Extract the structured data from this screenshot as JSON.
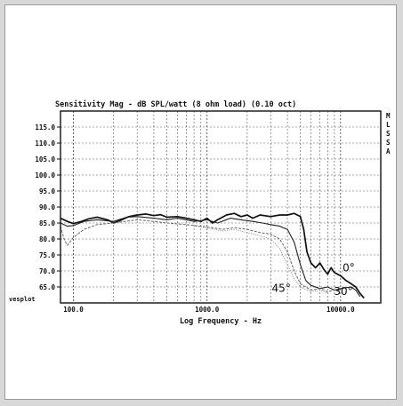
{
  "chart_data": {
    "type": "line",
    "title": "Sensitivity Mag - dB SPL/watt (8 ohm load) (0.10 oct)",
    "xlabel": "Log Frequency - Hz",
    "ylabel": "",
    "corner_label": "vesplot",
    "side_labels": [
      "M",
      "L",
      "S",
      "S",
      "A"
    ],
    "x_scale": "log",
    "xlim": [
      80,
      20000
    ],
    "ylim": [
      60,
      120
    ],
    "y_ticks": [
      {
        "value": 115,
        "label": "115.0"
      },
      {
        "value": 110,
        "label": "110.0"
      },
      {
        "value": 105,
        "label": "105.0"
      },
      {
        "value": 100,
        "label": "100.0"
      },
      {
        "value": 95,
        "label": "95.0"
      },
      {
        "value": 90,
        "label": "90.0"
      },
      {
        "value": 85,
        "label": "85.0"
      },
      {
        "value": 80,
        "label": "80.0"
      },
      {
        "value": 75,
        "label": "75.0"
      },
      {
        "value": 70,
        "label": "70.0"
      },
      {
        "value": 65,
        "label": "65.0"
      }
    ],
    "x_ticks": [
      {
        "value": 100,
        "label": "100.0"
      },
      {
        "value": 1000,
        "label": "1000.0"
      },
      {
        "value": 10000,
        "label": "10000.0"
      }
    ],
    "grid": true,
    "annotations": [
      {
        "text": "0°",
        "x": 11500,
        "y": 69.8
      },
      {
        "text": "45°",
        "x": 3600,
        "y": 63.5
      },
      {
        "text": "30°",
        "x": 10500,
        "y": 62.5
      }
    ],
    "series": [
      {
        "color": "#111111",
        "style": "solid",
        "width": 1.7,
        "points": [
          [
            80,
            86.5
          ],
          [
            90,
            85.5
          ],
          [
            100,
            84.8
          ],
          [
            115,
            85.5
          ],
          [
            130,
            86.3
          ],
          [
            150,
            86.8
          ],
          [
            180,
            86.0
          ],
          [
            200,
            85.0
          ],
          [
            230,
            86.0
          ],
          [
            260,
            87.0
          ],
          [
            300,
            87.5
          ],
          [
            350,
            87.8
          ],
          [
            400,
            87.3
          ],
          [
            450,
            87.6
          ],
          [
            500,
            86.8
          ],
          [
            600,
            87.0
          ],
          [
            700,
            86.5
          ],
          [
            800,
            86.0
          ],
          [
            900,
            85.5
          ],
          [
            1000,
            86.5
          ],
          [
            1100,
            85.0
          ],
          [
            1200,
            86.0
          ],
          [
            1400,
            87.5
          ],
          [
            1600,
            88.0
          ],
          [
            1800,
            87.0
          ],
          [
            2000,
            87.5
          ],
          [
            2200,
            86.5
          ],
          [
            2500,
            87.5
          ],
          [
            3000,
            87.0
          ],
          [
            3500,
            87.5
          ],
          [
            4000,
            87.5
          ],
          [
            4500,
            88.0
          ],
          [
            5000,
            87.0
          ],
          [
            5300,
            83.0
          ],
          [
            5600,
            76.0
          ],
          [
            6000,
            72.5
          ],
          [
            6500,
            71.0
          ],
          [
            7000,
            72.5
          ],
          [
            7500,
            70.5
          ],
          [
            8000,
            69.0
          ],
          [
            8500,
            71.0
          ],
          [
            9000,
            69.5
          ],
          [
            10000,
            68.5
          ],
          [
            11000,
            67.0
          ],
          [
            12000,
            66.0
          ],
          [
            13000,
            65.0
          ],
          [
            14000,
            63.0
          ],
          [
            15000,
            61.5
          ]
        ]
      },
      {
        "color": "#222222",
        "style": "solid",
        "width": 1.1,
        "points": [
          [
            80,
            85.0
          ],
          [
            90,
            84.0
          ],
          [
            100,
            84.2
          ],
          [
            120,
            85.5
          ],
          [
            150,
            86.0
          ],
          [
            200,
            85.5
          ],
          [
            250,
            86.8
          ],
          [
            300,
            87.0
          ],
          [
            400,
            86.5
          ],
          [
            500,
            86.0
          ],
          [
            600,
            86.5
          ],
          [
            800,
            85.5
          ],
          [
            1000,
            86.0
          ],
          [
            1200,
            85.0
          ],
          [
            1500,
            86.5
          ],
          [
            1800,
            86.0
          ],
          [
            2200,
            85.5
          ],
          [
            2600,
            85.0
          ],
          [
            3000,
            84.5
          ],
          [
            3500,
            84.0
          ],
          [
            4000,
            83.0
          ],
          [
            4500,
            79.0
          ],
          [
            5000,
            72.0
          ],
          [
            5500,
            67.0
          ],
          [
            6000,
            65.5
          ],
          [
            7000,
            64.5
          ],
          [
            8000,
            65.0
          ],
          [
            9000,
            64.0
          ],
          [
            10000,
            64.5
          ],
          [
            12000,
            65.0
          ],
          [
            13000,
            64.0
          ],
          [
            14000,
            62.0
          ]
        ]
      },
      {
        "color": "#666666",
        "style": "dashed",
        "width": 1.0,
        "points": [
          [
            80,
            84.0
          ],
          [
            85,
            80.0
          ],
          [
            90,
            78.0
          ],
          [
            100,
            80.5
          ],
          [
            120,
            83.0
          ],
          [
            150,
            84.5
          ],
          [
            200,
            85.0
          ],
          [
            300,
            86.0
          ],
          [
            400,
            85.5
          ],
          [
            500,
            85.0
          ],
          [
            700,
            84.5
          ],
          [
            900,
            84.0
          ],
          [
            1100,
            83.5
          ],
          [
            1300,
            83.0
          ],
          [
            1600,
            83.5
          ],
          [
            2000,
            83.0
          ],
          [
            2500,
            82.0
          ],
          [
            3000,
            81.5
          ],
          [
            3500,
            80.0
          ],
          [
            4000,
            76.0
          ],
          [
            4500,
            70.0
          ],
          [
            5000,
            66.0
          ],
          [
            6000,
            64.0
          ],
          [
            7000,
            64.5
          ],
          [
            8000,
            63.5
          ],
          [
            9000,
            64.0
          ],
          [
            10000,
            63.5
          ]
        ]
      },
      {
        "color": "#888888",
        "style": "dotted",
        "width": 1.0,
        "points": [
          [
            800,
            84.0
          ],
          [
            1000,
            83.5
          ],
          [
            1300,
            82.5
          ],
          [
            1600,
            83.0
          ],
          [
            2000,
            82.0
          ],
          [
            2500,
            81.0
          ],
          [
            3000,
            80.0
          ],
          [
            3500,
            77.0
          ],
          [
            4000,
            72.0
          ],
          [
            4500,
            67.5
          ],
          [
            5000,
            65.0
          ],
          [
            6000,
            63.5
          ],
          [
            7000,
            64.0
          ],
          [
            8000,
            63.0
          ]
        ]
      }
    ]
  }
}
